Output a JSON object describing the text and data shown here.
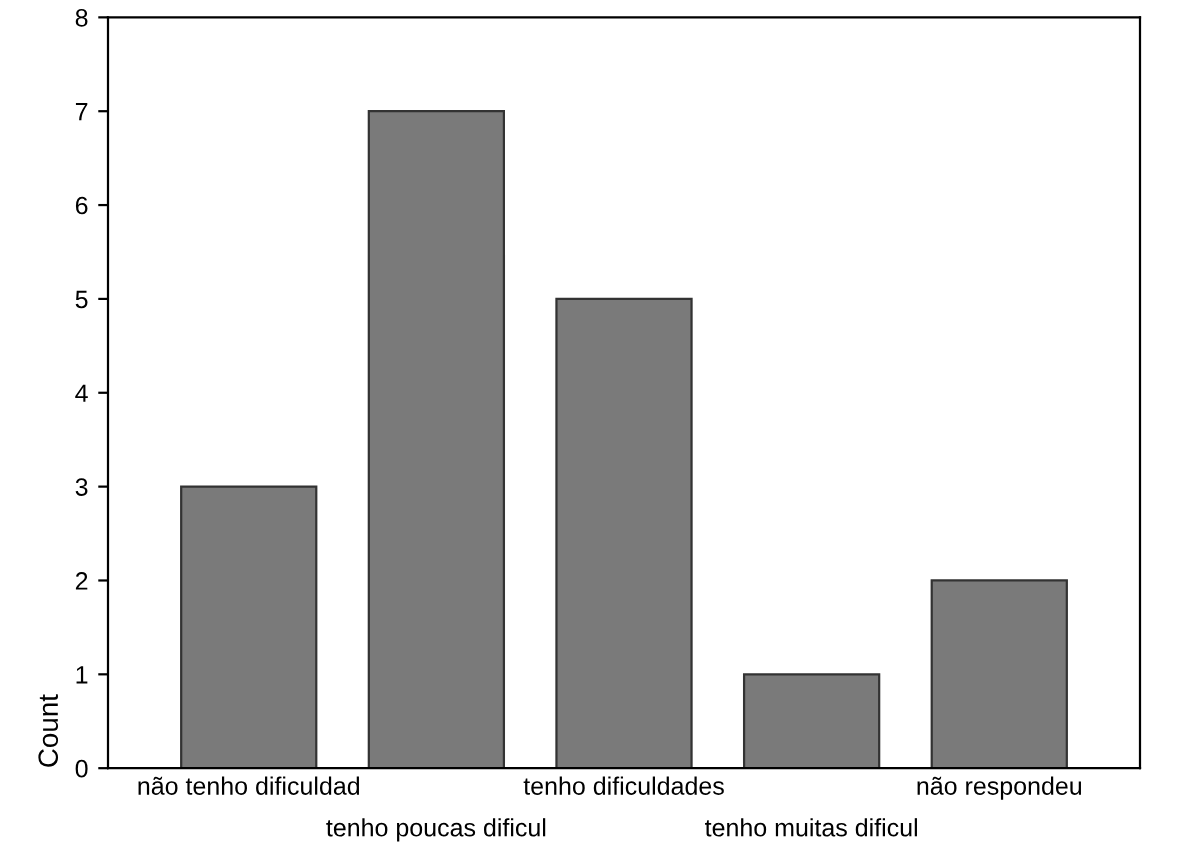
{
  "chart_data": {
    "type": "bar",
    "ylabel": "Count",
    "categories": [
      "não tenho dificuldad",
      "tenho poucas dificul",
      "tenho dificuldades",
      "tenho muitas dificul",
      "não respondeu"
    ],
    "values": [
      3,
      7,
      5,
      1,
      2
    ],
    "color": "#7a7a7a",
    "ylim": [
      0,
      8
    ],
    "yticks": [
      0,
      1,
      2,
      3,
      4,
      5,
      6,
      7,
      8
    ],
    "grid": false
  }
}
